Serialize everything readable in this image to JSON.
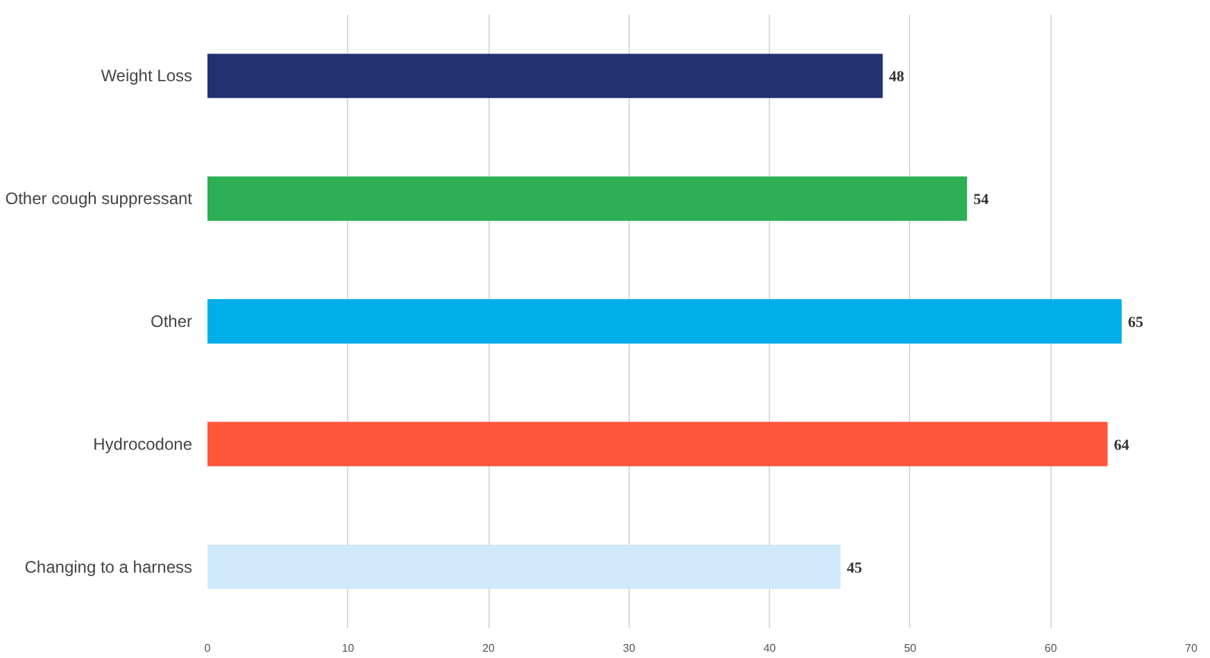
{
  "chart_data": {
    "type": "bar",
    "orientation": "horizontal",
    "categories": [
      "Weight Loss",
      "Other cough suppressant",
      "Other",
      "Hydrocodone",
      "Changing to a harness"
    ],
    "values": [
      48,
      54,
      65,
      64,
      45
    ],
    "colors": [
      "#22336f",
      "#2eaf55",
      "#00aeea",
      "#ff573b",
      "#d0e9fb"
    ],
    "xlim": [
      0,
      70
    ],
    "xticks": [
      0,
      10,
      20,
      30,
      40,
      50,
      60,
      70
    ],
    "grid": "x",
    "data_labels": true
  }
}
